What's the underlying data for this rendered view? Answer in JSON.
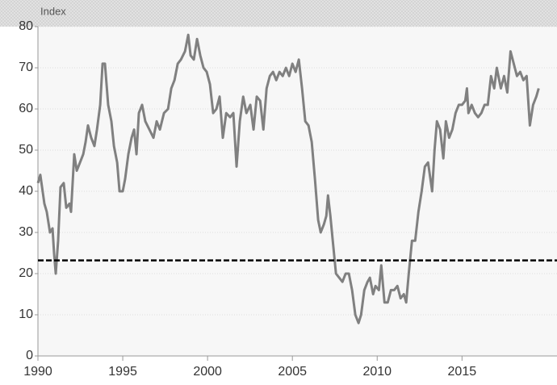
{
  "chart_data": {
    "type": "line",
    "y_label": "Index",
    "x": [
      1990,
      1990.14,
      1990.38,
      1990.52,
      1990.71,
      1990.86,
      1990.95,
      1991.05,
      1991.19,
      1991.33,
      1991.52,
      1991.67,
      1991.86,
      1991.95,
      1992.14,
      1992.29,
      1992.48,
      1992.67,
      1992.81,
      1992.95,
      1993.14,
      1993.33,
      1993.48,
      1993.67,
      1993.81,
      1993.95,
      1994.14,
      1994.33,
      1994.48,
      1994.67,
      1994.81,
      1995,
      1995.14,
      1995.33,
      1995.52,
      1995.67,
      1995.81,
      1995.95,
      1996.14,
      1996.33,
      1996.57,
      1996.81,
      1997,
      1997.19,
      1997.43,
      1997.67,
      1997.86,
      1998.05,
      1998.24,
      1998.43,
      1998.67,
      1998.86,
      1999,
      1999.19,
      1999.38,
      1999.57,
      1999.76,
      1999.95,
      2000.14,
      2000.33,
      2000.52,
      2000.71,
      2000.9,
      2001.1,
      2001.33,
      2001.52,
      2001.71,
      2001.9,
      2002.1,
      2002.29,
      2002.52,
      2002.71,
      2002.9,
      2003.1,
      2003.29,
      2003.48,
      2003.67,
      2003.86,
      2004.05,
      2004.24,
      2004.43,
      2004.62,
      2004.81,
      2005,
      2005.19,
      2005.38,
      2005.57,
      2005.76,
      2005.95,
      2006.14,
      2006.33,
      2006.52,
      2006.67,
      2006.86,
      2007,
      2007.1,
      2007.24,
      2007.38,
      2007.57,
      2007.76,
      2007.95,
      2008.14,
      2008.33,
      2008.52,
      2008.71,
      2008.9,
      2009.05,
      2009.24,
      2009.43,
      2009.57,
      2009.76,
      2009.9,
      2010.1,
      2010.24,
      2010.43,
      2010.62,
      2010.81,
      2011,
      2011.19,
      2011.38,
      2011.57,
      2011.71,
      2011.86,
      2012.05,
      2012.24,
      2012.43,
      2012.62,
      2012.81,
      2013,
      2013.24,
      2013.38,
      2013.52,
      2013.71,
      2013.9,
      2014.05,
      2014.24,
      2014.43,
      2014.62,
      2014.81,
      2015,
      2015.19,
      2015.29,
      2015.38,
      2015.57,
      2015.76,
      2015.95,
      2016.14,
      2016.33,
      2016.52,
      2016.71,
      2016.9,
      2017.05,
      2017.29,
      2017.48,
      2017.67,
      2017.86,
      2018.05,
      2018.24,
      2018.43,
      2018.62,
      2018.81,
      2019,
      2019.19,
      2019.38,
      2019.52
    ],
    "values": [
      42,
      44,
      37,
      35,
      30,
      31,
      25,
      20,
      28,
      41,
      42,
      36,
      37,
      35,
      49,
      45,
      47,
      49,
      52,
      56,
      53,
      51,
      55,
      61,
      71,
      71,
      61,
      57,
      51,
      47,
      40,
      40,
      43,
      49,
      53,
      55,
      49,
      59,
      61,
      57,
      55,
      53,
      57,
      55,
      59,
      60,
      65,
      67,
      71,
      72,
      74,
      78,
      73,
      72,
      77,
      73,
      70,
      69,
      66,
      59,
      60,
      63,
      53,
      59,
      58,
      59,
      46,
      57,
      63,
      59,
      61,
      55,
      63,
      62,
      55,
      65,
      68,
      69,
      67,
      69,
      68,
      70,
      68,
      71,
      69,
      72,
      65,
      57,
      56,
      52,
      43,
      33,
      30,
      32,
      34,
      39,
      34,
      28,
      20,
      19,
      18,
      20,
      20,
      16,
      10,
      8,
      10,
      16,
      18,
      19,
      15,
      17,
      16,
      22,
      13,
      13,
      16,
      16,
      17,
      14,
      15,
      13,
      20,
      28,
      28,
      35,
      40,
      46,
      47,
      40,
      50,
      57,
      55,
      48,
      57,
      53,
      55,
      59,
      61,
      61,
      62,
      65,
      59,
      61,
      59,
      58,
      59,
      61,
      61,
      68,
      65,
      70,
      65,
      68,
      64,
      74,
      71,
      68,
      69,
      67,
      68,
      56,
      61,
      63,
      65
    ],
    "color": "#808080",
    "reference_line": {
      "value": 23.2,
      "color": "#000000"
    },
    "xlim": [
      1990,
      2020.6
    ],
    "xticks": [
      1990,
      1995,
      2000,
      2005,
      2010,
      2015
    ],
    "ylim": [
      0,
      80
    ],
    "yticks": [
      0,
      10,
      20,
      30,
      40,
      50,
      60,
      70,
      80
    ],
    "grid": true
  }
}
